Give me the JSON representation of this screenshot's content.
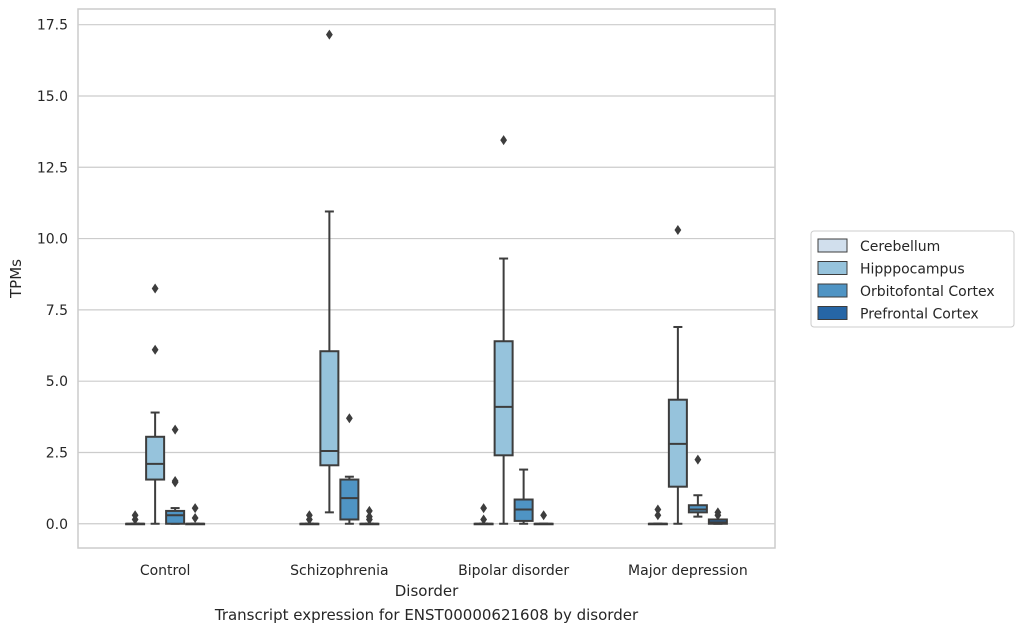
{
  "caption": "Transcript expression for ENST00000621608 by disorder",
  "colors": {
    "Cerebellum": "#d1dfed",
    "Hipppocampus": "#96c3dc",
    "Orbitofontal Cortex": "#4f94c4",
    "Prefrontal Cortex": "#2666a6",
    "grid": "#cccccc",
    "line": "#3d3d3d"
  },
  "chart_data": {
    "type": "box",
    "title": "",
    "xlabel": "Disorder",
    "ylabel": "TPMs",
    "ylim": [
      -0.85,
      18.05
    ],
    "yticks": [
      0.0,
      2.5,
      5.0,
      7.5,
      10.0,
      12.5,
      15.0,
      17.5
    ],
    "ytick_labels": [
      "0.0",
      "2.5",
      "5.0",
      "7.5",
      "10.0",
      "12.5",
      "15.0",
      "17.5"
    ],
    "categories": [
      "Control",
      "Schizophrenia",
      "Bipolar disorder",
      "Major depression"
    ],
    "grid": true,
    "legend_position": "right",
    "series": [
      {
        "name": "Cerebellum",
        "boxes": [
          {
            "whislo": 0,
            "q1": 0,
            "med": 0,
            "q3": 0,
            "whishi": 0,
            "fliers": [
              0.15,
              0.3
            ]
          },
          {
            "whislo": 0,
            "q1": 0,
            "med": 0,
            "q3": 0,
            "whishi": 0,
            "fliers": [
              0.15,
              0.3
            ]
          },
          {
            "whislo": 0,
            "q1": 0,
            "med": 0,
            "q3": 0,
            "whishi": 0,
            "fliers": [
              0.15,
              0.55
            ]
          },
          {
            "whislo": 0,
            "q1": 0,
            "med": 0,
            "q3": 0,
            "whishi": 0,
            "fliers": [
              0.3,
              0.5
            ]
          }
        ]
      },
      {
        "name": "Hipppocampus",
        "boxes": [
          {
            "whislo": 0,
            "q1": 1.55,
            "med": 2.1,
            "q3": 3.05,
            "whishi": 3.9,
            "fliers": [
              6.1,
              8.25
            ]
          },
          {
            "whislo": 0.4,
            "q1": 2.05,
            "med": 2.55,
            "q3": 6.05,
            "whishi": 10.95,
            "fliers": [
              17.15
            ]
          },
          {
            "whislo": 0,
            "q1": 2.4,
            "med": 4.1,
            "q3": 6.4,
            "whishi": 9.3,
            "fliers": [
              13.45
            ]
          },
          {
            "whislo": 0,
            "q1": 1.3,
            "med": 2.8,
            "q3": 4.35,
            "whishi": 6.9,
            "fliers": [
              10.3
            ]
          }
        ]
      },
      {
        "name": "Orbitofontal Cortex",
        "boxes": [
          {
            "whislo": 0,
            "q1": 0,
            "med": 0.3,
            "q3": 0.45,
            "whishi": 0.55,
            "fliers": [
              1.45,
              1.5,
              3.3
            ]
          },
          {
            "whislo": 0,
            "q1": 0.15,
            "med": 0.9,
            "q3": 1.55,
            "whishi": 1.65,
            "fliers": [
              3.7
            ]
          },
          {
            "whislo": 0,
            "q1": 0.1,
            "med": 0.5,
            "q3": 0.85,
            "whishi": 1.9,
            "fliers": []
          },
          {
            "whislo": 0.25,
            "q1": 0.4,
            "med": 0.5,
            "q3": 0.65,
            "whishi": 1.0,
            "fliers": [
              2.25
            ]
          }
        ]
      },
      {
        "name": "Prefrontal Cortex",
        "boxes": [
          {
            "whislo": 0,
            "q1": 0,
            "med": 0,
            "q3": 0,
            "whishi": 0,
            "fliers": [
              0.2,
              0.55
            ]
          },
          {
            "whislo": 0,
            "q1": 0,
            "med": 0,
            "q3": 0,
            "whishi": 0,
            "fliers": [
              0.15,
              0.25,
              0.45
            ]
          },
          {
            "whislo": 0,
            "q1": 0,
            "med": 0,
            "q3": 0,
            "whishi": 0,
            "fliers": [
              0.3
            ]
          },
          {
            "whislo": 0,
            "q1": 0,
            "med": 0.05,
            "q3": 0.15,
            "whishi": 0.15,
            "fliers": [
              0.3,
              0.4
            ]
          }
        ]
      }
    ]
  }
}
